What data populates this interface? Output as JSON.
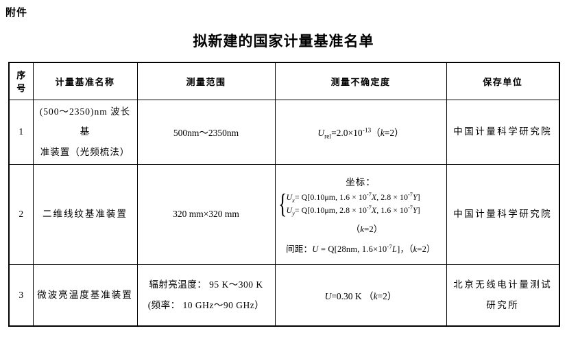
{
  "page": {
    "attachment_label": "附件",
    "title": "拟新建的国家计量基准名单"
  },
  "colors": {
    "background": "#ffffff",
    "text": "#000000",
    "border": "#000000"
  },
  "table": {
    "headers": [
      "序号",
      "计量基准名称",
      "测量范围",
      "测量不确定度",
      "保存单位"
    ],
    "rows": [
      {
        "no": "1",
        "name_lines": [
          "(500～2350)nm 波长基",
          "准装置（光频梳法）"
        ],
        "range": "500nm～2350nm",
        "uncertainty_runs": [
          {
            "t": "U",
            "i": true
          },
          {
            "t": "rel",
            "sub": true
          },
          {
            "t": "=2.0×10"
          },
          {
            "t": "-13",
            "sup": true
          },
          {
            "t": "（"
          },
          {
            "t": "k",
            "i": true
          },
          {
            "t": "=2）"
          }
        ],
        "keeper_lines": [
          "中国计量科学研究院"
        ]
      },
      {
        "no": "2",
        "name_lines": [
          "二维线纹基准装置"
        ],
        "range": "320 mm×320 mm",
        "uncertainty": {
          "coord_label": "坐标：",
          "brace": "{",
          "line_x_runs": [
            {
              "t": "U",
              "i": true
            },
            {
              "t": "x",
              "i": true,
              "sub": true
            },
            {
              "t": "= Q[0.10μm, 1.6 × 10"
            },
            {
              "t": "-7",
              "sup": true
            },
            {
              "t": "X",
              "i": true
            },
            {
              "t": ", 2.8 × 10"
            },
            {
              "t": "-7",
              "sup": true
            },
            {
              "t": "Y",
              "i": true
            },
            {
              "t": "]"
            }
          ],
          "line_y_runs": [
            {
              "t": "U",
              "i": true
            },
            {
              "t": "y",
              "i": true,
              "sub": true
            },
            {
              "t": "= Q[0.10μm, 2.8 × 10"
            },
            {
              "t": "-7",
              "sup": true
            },
            {
              "t": "X",
              "i": true
            },
            {
              "t": ", 1.6 × 10"
            },
            {
              "t": "-7",
              "sup": true
            },
            {
              "t": "Y",
              "i": true
            },
            {
              "t": "]"
            }
          ],
          "k_note_runs": [
            {
              "t": "（"
            },
            {
              "t": "k",
              "i": true
            },
            {
              "t": "=2）"
            }
          ],
          "spacing_runs": [
            {
              "t": "间距："
            },
            {
              "t": "U",
              "i": true
            },
            {
              "t": " = Q[28nm, 1.6×10"
            },
            {
              "t": "-7",
              "sup": true
            },
            {
              "t": "L",
              "i": true
            },
            {
              "t": "]，（"
            },
            {
              "t": "k",
              "i": true
            },
            {
              "t": "=2）"
            }
          ]
        },
        "keeper_lines": [
          "中国计量科学研究院"
        ]
      },
      {
        "no": "3",
        "name_lines": [
          "微波亮温度基准装置"
        ],
        "range_lines": [
          "辐射亮温度： 95 K～300 K",
          "(频率： 10 GHz～90 GHz）"
        ],
        "uncertainty_runs": [
          {
            "t": "U",
            "i": true
          },
          {
            "t": "=0.30 K （"
          },
          {
            "t": "k",
            "i": true
          },
          {
            "t": "=2）"
          }
        ],
        "keeper_lines": [
          "北京无线电计量测试",
          "研究所"
        ]
      }
    ]
  }
}
